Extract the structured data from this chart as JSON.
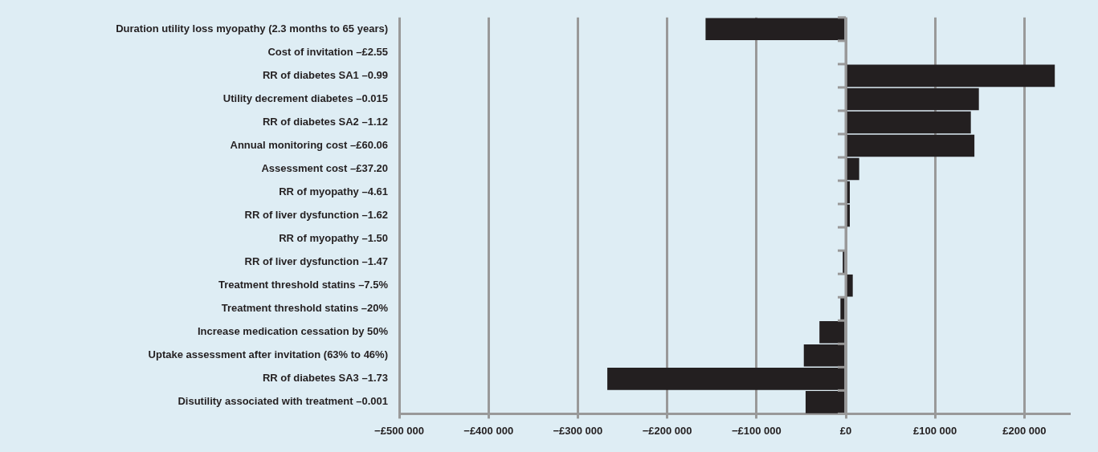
{
  "chart_data": {
    "type": "bar",
    "orientation": "horizontal",
    "categories": [
      "Duration utility loss myopathy (2.3 months to 65 years)",
      "Cost of invitation –£2.55",
      "RR of diabetes SA1 –0.99",
      "Utility decrement diabetes –0.015",
      "RR of diabetes SA2 –1.12",
      "Annual monitoring cost –£60.06",
      "Assessment cost –£37.20",
      "RR of myopathy –4.61",
      "RR of liver dysfunction –1.62",
      "RR of myopathy –1.50",
      "RR of liver dysfunction –1.47",
      "Treatment threshold statins –7.5%",
      "Treatment threshold statins –20%",
      "Increase medication cessation by 50%",
      "Uptake assessment after invitation (63% to 46%)",
      "RR of diabetes SA3 –1.73",
      "Disutility associated with treatment –0.001"
    ],
    "values": [
      -157000,
      0,
      234000,
      149000,
      140000,
      144000,
      15000,
      4500,
      4500,
      0,
      -3400,
      7800,
      -6000,
      -29500,
      -47000,
      -267000,
      -45000
    ],
    "color": "#231f20",
    "xlim": [
      -500000,
      250000
    ],
    "xticks": [
      {
        "value": -500000,
        "label": "−£500 000"
      },
      {
        "value": -400000,
        "label": "−£400 000"
      },
      {
        "value": -300000,
        "label": "−£300 000"
      },
      {
        "value": -200000,
        "label": "−£200 000"
      },
      {
        "value": -100000,
        "label": "−£100 000"
      },
      {
        "value": 0,
        "label": "£0"
      },
      {
        "value": 100000,
        "label": "£100 000"
      },
      {
        "value": 200000,
        "label": "£200 000"
      }
    ],
    "grid": "x",
    "legend": false
  }
}
